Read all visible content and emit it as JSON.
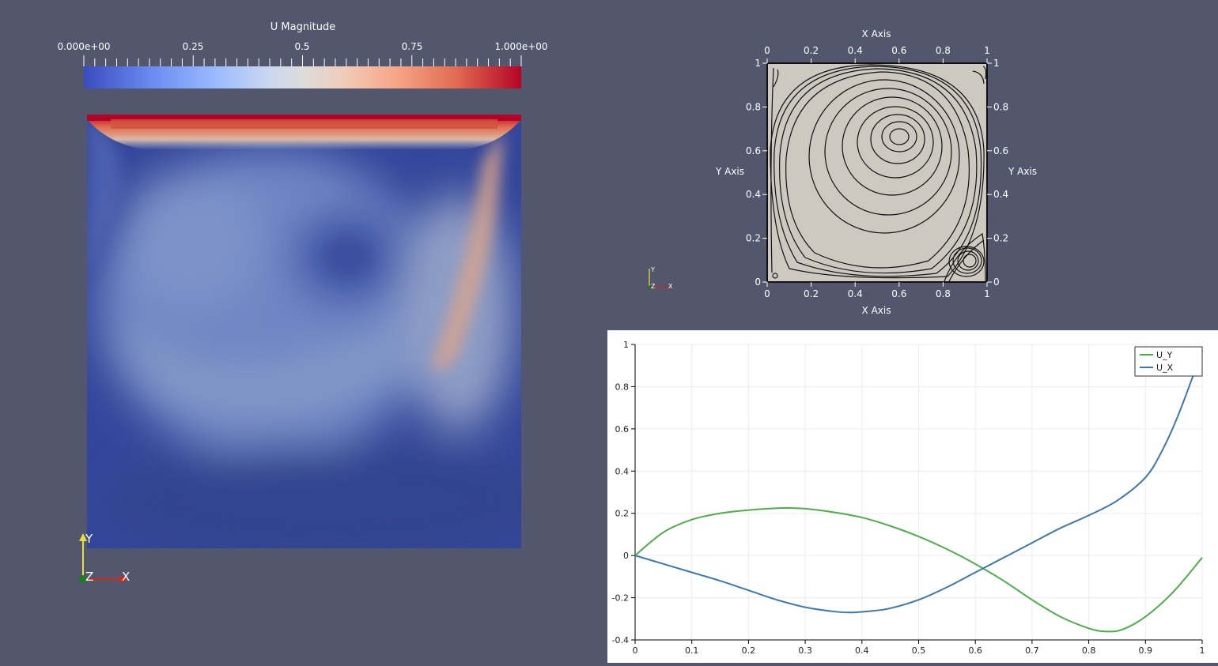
{
  "colorbar": {
    "title": "U Magnitude",
    "min_label": "0.000e+00",
    "label_025": "0.25",
    "label_05": "0.5",
    "label_075": "0.75",
    "max_label": "1.000e+00",
    "min_value": 0,
    "max_value": 1,
    "colors": [
      "#3b4cc0",
      "#dddcdb",
      "#b40426"
    ]
  },
  "field_view": {
    "orientation_axes": {
      "y": "Y",
      "z": "Z",
      "x": "X"
    },
    "colors": {
      "background": "#52576e",
      "x_axis": "#d9261c",
      "y_axis": "#e8e040",
      "z_axis": "#1f7a1f"
    }
  },
  "streamline_view": {
    "top_axis_title": "X Axis",
    "bottom_axis_title": "X Axis",
    "left_axis_title": "Y Axis",
    "right_axis_title": "Y Axis",
    "x_ticks": [
      "0",
      "0.2",
      "0.4",
      "0.6",
      "0.8",
      "1"
    ],
    "y_ticks": [
      "0",
      "0.2",
      "0.4",
      "0.6",
      "0.8",
      "1"
    ],
    "orientation_axes": {
      "y": "Y",
      "z": "Z",
      "x": "X"
    },
    "colors": {
      "fill": "#cdc9c1",
      "lines": "#111111"
    }
  },
  "chart_data": {
    "type": "line",
    "title": "",
    "xlabel": "",
    "ylabel": "",
    "xlim": [
      0,
      1
    ],
    "ylim": [
      -0.4,
      1
    ],
    "x_ticks": [
      0,
      0.1,
      0.2,
      0.3,
      0.4,
      0.5,
      0.6,
      0.7,
      0.8,
      0.9,
      1
    ],
    "y_ticks": [
      -0.4,
      -0.2,
      0,
      0.2,
      0.4,
      0.6,
      0.8,
      1
    ],
    "x_tick_labels": [
      "0",
      "0.1",
      "0.2",
      "0.3",
      "0.4",
      "0.5",
      "0.6",
      "0.7",
      "0.8",
      "0.9",
      "1"
    ],
    "y_tick_labels": [
      "-0.4",
      "-0.2",
      "0",
      "0.2",
      "0.4",
      "0.6",
      "0.8",
      "1"
    ],
    "legend_position": "top-right",
    "series": [
      {
        "name": "U_Y",
        "color": "#4daf4a",
        "x": [
          0,
          0.05,
          0.1,
          0.15,
          0.2,
          0.26,
          0.3,
          0.35,
          0.4,
          0.45,
          0.5,
          0.55,
          0.6,
          0.65,
          0.7,
          0.75,
          0.8,
          0.83,
          0.86,
          0.9,
          0.95,
          1
        ],
        "y": [
          0,
          0.11,
          0.17,
          0.2,
          0.215,
          0.225,
          0.222,
          0.205,
          0.18,
          0.14,
          0.09,
          0.03,
          -0.04,
          -0.12,
          -0.21,
          -0.29,
          -0.345,
          -0.36,
          -0.35,
          -0.29,
          -0.17,
          -0.01
        ]
      },
      {
        "name": "U_X",
        "color": "#3c78b4",
        "x": [
          0,
          0.05,
          0.1,
          0.15,
          0.2,
          0.25,
          0.3,
          0.35,
          0.38,
          0.42,
          0.45,
          0.5,
          0.55,
          0.6,
          0.65,
          0.7,
          0.75,
          0.8,
          0.85,
          0.9,
          0.93,
          0.96,
          1
        ],
        "y": [
          0,
          -0.04,
          -0.08,
          -0.12,
          -0.165,
          -0.21,
          -0.245,
          -0.265,
          -0.27,
          -0.262,
          -0.25,
          -0.21,
          -0.15,
          -0.08,
          -0.01,
          0.06,
          0.13,
          0.19,
          0.26,
          0.37,
          0.5,
          0.68,
          0.97
        ]
      }
    ]
  }
}
